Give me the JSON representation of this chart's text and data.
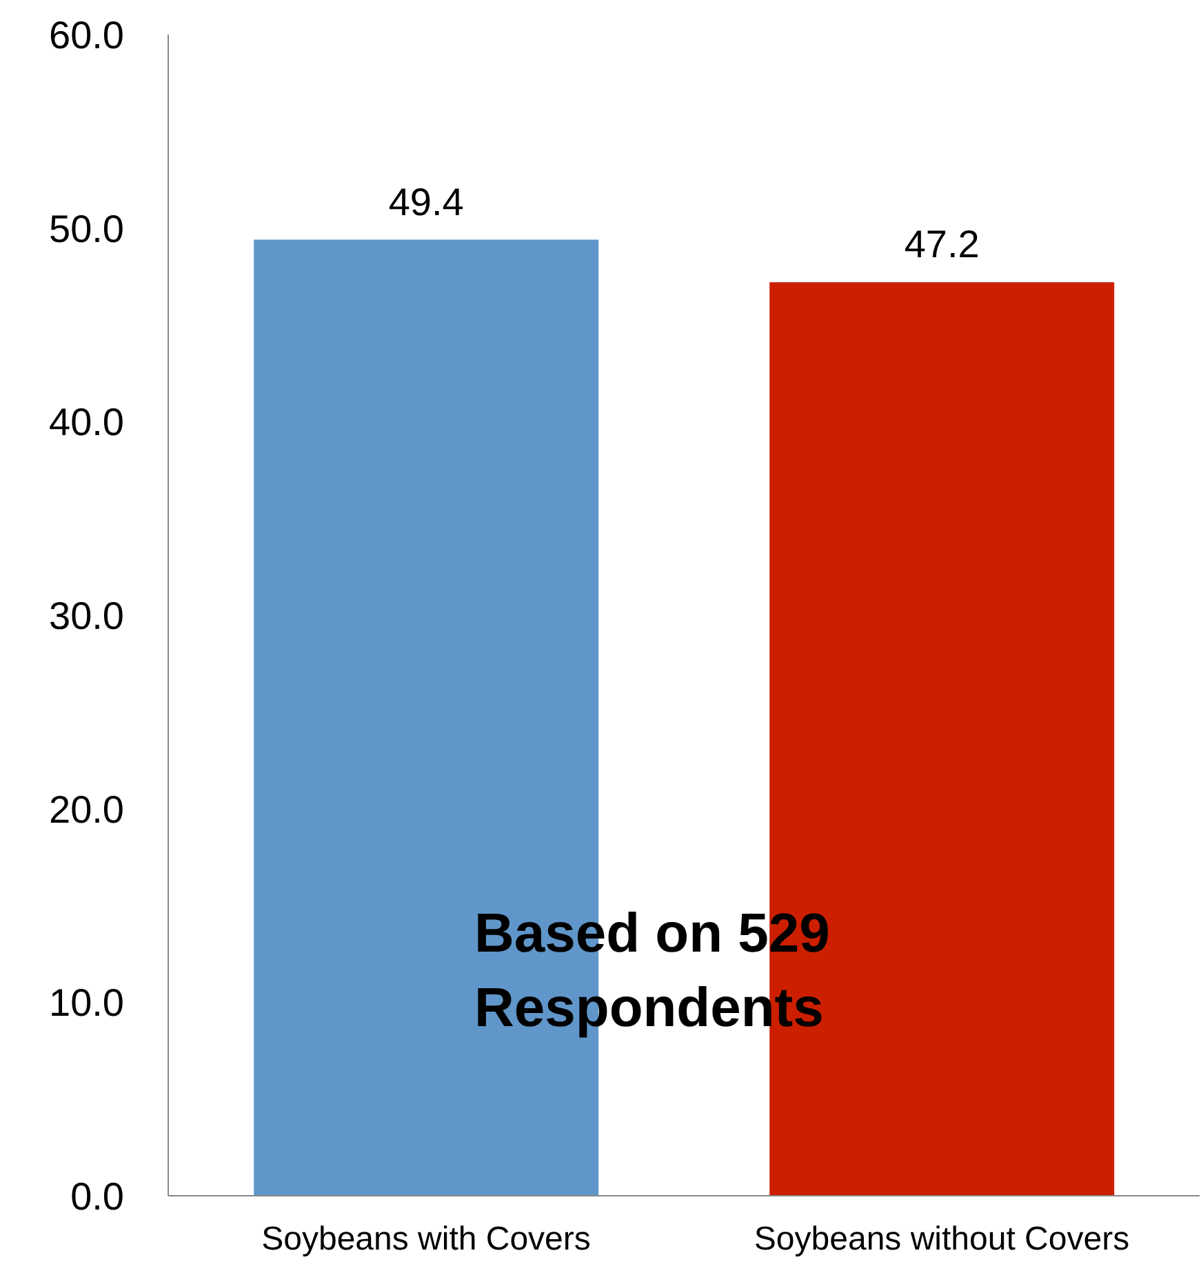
{
  "chart_data": {
    "type": "bar",
    "categories": [
      "Soybeans with Covers",
      "Soybeans without Covers"
    ],
    "values": [
      49.4,
      47.2
    ],
    "colors": [
      "#6096c9",
      "#cc1f00"
    ],
    "ylim": [
      0,
      60
    ],
    "yticks": [
      {
        "value": 0,
        "label": "0.0"
      },
      {
        "value": 10,
        "label": "10.0"
      },
      {
        "value": 20,
        "label": "20.0"
      },
      {
        "value": 30,
        "label": "30.0"
      },
      {
        "value": 40,
        "label": "40.0"
      },
      {
        "value": 50,
        "label": "50.0"
      },
      {
        "value": 60,
        "label": "60.0"
      }
    ],
    "data_labels": true,
    "grid": false,
    "annotations": [
      "Based on 529 Respondents"
    ]
  }
}
